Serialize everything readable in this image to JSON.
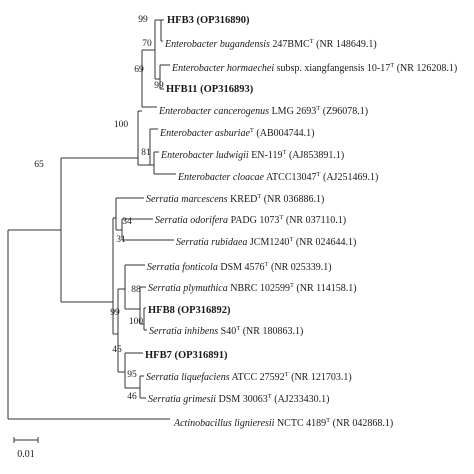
{
  "tree": {
    "leaves": [
      {
        "id": "hfb3",
        "name": "HFB3 (OP316890)",
        "bold": true
      },
      {
        "id": "e_bugandensis",
        "italic": "Enterobacter bugandensis",
        "rest": " 247BMC",
        "sup": "T",
        "acc": " (NR 148649.1)"
      },
      {
        "id": "e_hormaechei",
        "italic": "Enterobacter hormaechei",
        "rest": " subsp. xiangfangensis 10-17",
        "sup": "T",
        "acc": " (NR 126208.1)"
      },
      {
        "id": "hfb11",
        "name": "HFB11 (OP316893)",
        "bold": true
      },
      {
        "id": "e_cancerogenus",
        "italic": "Enterobacter cancerogenus",
        "rest": " LMG 2693",
        "sup": "T",
        "acc": " (Z96078.1)"
      },
      {
        "id": "e_asburiae",
        "italic": "Enterobacter asburiae",
        "rest": "",
        "sup": "T",
        "acc": " (AB004744.1)"
      },
      {
        "id": "e_ludwigii",
        "italic": "Enterobacter ludwigii",
        "rest": " EN-119",
        "sup": "T",
        "acc": " (AJ853891.1)"
      },
      {
        "id": "e_cloacae",
        "italic": "Enterobacter cloacae",
        "rest": " ATCC13047",
        "sup": "T",
        "acc": " (AJ251469.1)"
      },
      {
        "id": "s_marcescens",
        "italic": "Serratia marcescens",
        "rest": " KRED",
        "sup": "T",
        "acc": " (NR 036886.1)"
      },
      {
        "id": "s_odorifera",
        "italic": "Serratia odorifera",
        "rest": " PADG 1073",
        "sup": "T",
        "acc": " (NR 037110.1)"
      },
      {
        "id": "s_rubidaea",
        "italic": "Serratia rubidaea",
        "rest": " JCM1240",
        "sup": "T",
        "acc": " (NR 024644.1)"
      },
      {
        "id": "s_fonticola",
        "italic": "Serratia fonticola",
        "rest": " DSM 4576",
        "sup": "T",
        "acc": " (NR 025339.1)"
      },
      {
        "id": "s_plymuthica",
        "italic": "Serratia plymuthica",
        "rest": " NBRC 102599",
        "sup": "T",
        "acc": " (NR 114158.1)"
      },
      {
        "id": "hfb8",
        "name": "HFB8 (OP316892)",
        "bold": true
      },
      {
        "id": "s_inhibens",
        "italic": "Serratia inhibens",
        "rest": " S40",
        "sup": "T",
        "acc": " (NR 180863.1)"
      },
      {
        "id": "hfb7",
        "name": "HFB7 (OP316891)",
        "bold": true
      },
      {
        "id": "s_liquefaciens",
        "italic": "Serratia liquefaciens",
        "rest": " ATCC 27592",
        "sup": "T",
        "acc": " (NR 121703.1)"
      },
      {
        "id": "s_grimesii",
        "italic": "Serratia grimesii",
        "rest": " DSM 30063",
        "sup": "T",
        "acc": " (AJ233430.1)"
      },
      {
        "id": "a_lignieresii",
        "italic": "Actinobacillus lignieresii",
        "rest": " NCTC 4189",
        "sup": "T",
        "acc": " (NR 042868.1)"
      }
    ],
    "bootstrap": {
      "hfb3_clade": "99",
      "hormaechei_clade": "70",
      "hfb11_clade": "99",
      "cancerogenus_clade": "69",
      "enterobacter_clade": "100",
      "ludwigii_clade": "81",
      "root_ingroup": "65",
      "marcescens_clade": "34",
      "odorifera_clade": "31",
      "plymuthica_clade": "88",
      "hfb8_clade": "100",
      "fonticola_clade": "99",
      "liquefaciens_group": "45",
      "liquefaciens_clade": "95",
      "grimesii_clade": "46"
    },
    "scale": {
      "label": "0.01"
    }
  }
}
